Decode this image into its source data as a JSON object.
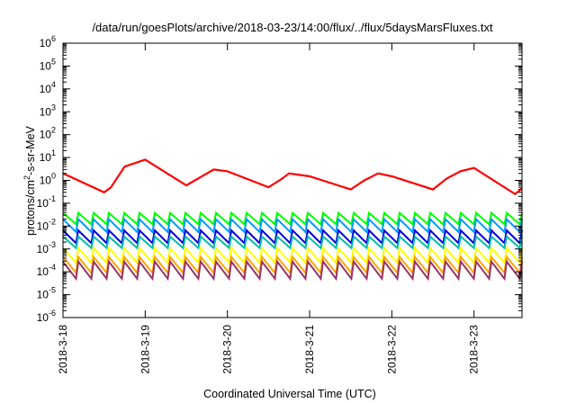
{
  "chart_data": {
    "type": "line",
    "title": "/data/run/goesPlots/archive/2018-03-23/14:00/flux/../flux/5daysMarsFluxes.txt",
    "xlabel": "Coordinated Universal Time (UTC)",
    "ylabel": "protons/cm²-s-sr-MeV",
    "ylabel_parts": {
      "pre": "protons/cm",
      "sup": "2",
      "post": "-s-sr-MeV"
    },
    "yscale": "log",
    "ylim": [
      1e-06,
      1000000.0
    ],
    "y_ticks": [
      {
        "base": "10",
        "exp": "-6"
      },
      {
        "base": "10",
        "exp": "-5"
      },
      {
        "base": "10",
        "exp": "-4"
      },
      {
        "base": "10",
        "exp": "-3"
      },
      {
        "base": "10",
        "exp": "-2"
      },
      {
        "base": "10",
        "exp": "-1"
      },
      {
        "base": "10",
        "exp": "0"
      },
      {
        "base": "10",
        "exp": "1"
      },
      {
        "base": "10",
        "exp": "2"
      },
      {
        "base": "10",
        "exp": "3"
      },
      {
        "base": "10",
        "exp": "4"
      },
      {
        "base": "10",
        "exp": "5"
      },
      {
        "base": "10",
        "exp": "6"
      }
    ],
    "xlim": [
      "2018-03-18T00:00",
      "2018-03-23T14:00"
    ],
    "x_ticks": [
      "2018-3-18",
      "2018-3-19",
      "2018-3-20",
      "2018-3-21",
      "2018-3-22",
      "2018-3-23"
    ],
    "grid": false,
    "series": [
      {
        "color": "#ff0000",
        "width": 2.2,
        "points": [
          [
            "2018-03-18T00:00",
            2.0
          ],
          [
            "2018-03-18T12:00",
            0.3
          ],
          [
            "2018-03-18T14:00",
            0.5
          ],
          [
            "2018-03-18T18:00",
            4.0
          ],
          [
            "2018-03-19T00:00",
            8.0
          ],
          [
            "2018-03-19T12:00",
            0.6
          ],
          [
            "2018-03-19T20:00",
            3.0
          ],
          [
            "2018-03-20T00:00",
            2.5
          ],
          [
            "2018-03-20T12:00",
            0.5
          ],
          [
            "2018-03-20T16:00",
            1.2
          ],
          [
            "2018-03-20T18:00",
            2.0
          ],
          [
            "2018-03-21T00:00",
            1.5
          ],
          [
            "2018-03-21T12:00",
            0.4
          ],
          [
            "2018-03-21T16:00",
            1.0
          ],
          [
            "2018-03-21T20:00",
            2.0
          ],
          [
            "2018-03-22T00:00",
            1.5
          ],
          [
            "2018-03-22T12:00",
            0.4
          ],
          [
            "2018-03-22T16:00",
            1.2
          ],
          [
            "2018-03-22T20:00",
            2.5
          ],
          [
            "2018-03-23T00:00",
            3.5
          ],
          [
            "2018-03-23T12:00",
            0.25
          ],
          [
            "2018-03-23T14:00",
            0.45
          ]
        ]
      },
      {
        "color": "#00ff00",
        "width": 2,
        "sawtooth": {
          "peak": 0.038,
          "trough": 0.012,
          "cycles": 30
        }
      },
      {
        "color": "#0099ff",
        "width": 2,
        "sawtooth": {
          "peak": 0.02,
          "trough": 0.0055,
          "cycles": 30
        }
      },
      {
        "color": "#0000dd",
        "width": 2,
        "sawtooth": {
          "peak": 0.0065,
          "trough": 0.0018,
          "cycles": 30
        }
      },
      {
        "color": "#00bbaa",
        "width": 2,
        "sawtooth": {
          "peak": 0.0035,
          "trough": 0.0011,
          "cycles": 30
        }
      },
      {
        "color": "#ffff00",
        "width": 2,
        "sawtooth": {
          "peak": 0.0011,
          "trough": 0.00025,
          "cycles": 30
        }
      },
      {
        "color": "#ffa500",
        "width": 2,
        "sawtooth": {
          "peak": 0.00045,
          "trough": 9e-05,
          "cycles": 30
        }
      },
      {
        "color": "#993366",
        "width": 2,
        "sawtooth": {
          "peak": 0.00028,
          "trough": 5e-05,
          "cycles": 30
        }
      }
    ]
  }
}
